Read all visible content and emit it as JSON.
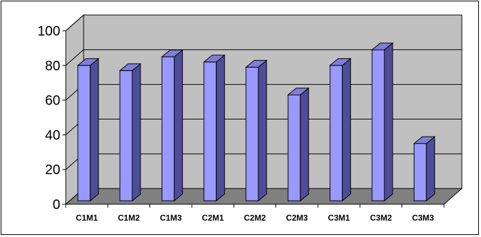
{
  "chart_data": {
    "type": "bar",
    "title": "",
    "xlabel": "",
    "ylabel": "",
    "categories": [
      "C1M1",
      "C1M2",
      "C1M3",
      "C2M1",
      "C2M2",
      "C2M3",
      "C3M1",
      "C3M2",
      "C3M3"
    ],
    "values": [
      80,
      77,
      85,
      82,
      79,
      63,
      80,
      89,
      35
    ],
    "ylim": [
      0,
      100
    ],
    "yticks": [
      "0",
      "20",
      "40",
      "60",
      "80",
      "100"
    ],
    "grid": true,
    "legend": "none",
    "style": "3d-column",
    "colors": {
      "bar_front": "#9999ff",
      "bar_top": "#7f7fd8",
      "bar_side": "#4d4d99",
      "wall": "#c0c0c0",
      "floor": "#808080",
      "gridline": "#000000"
    }
  }
}
